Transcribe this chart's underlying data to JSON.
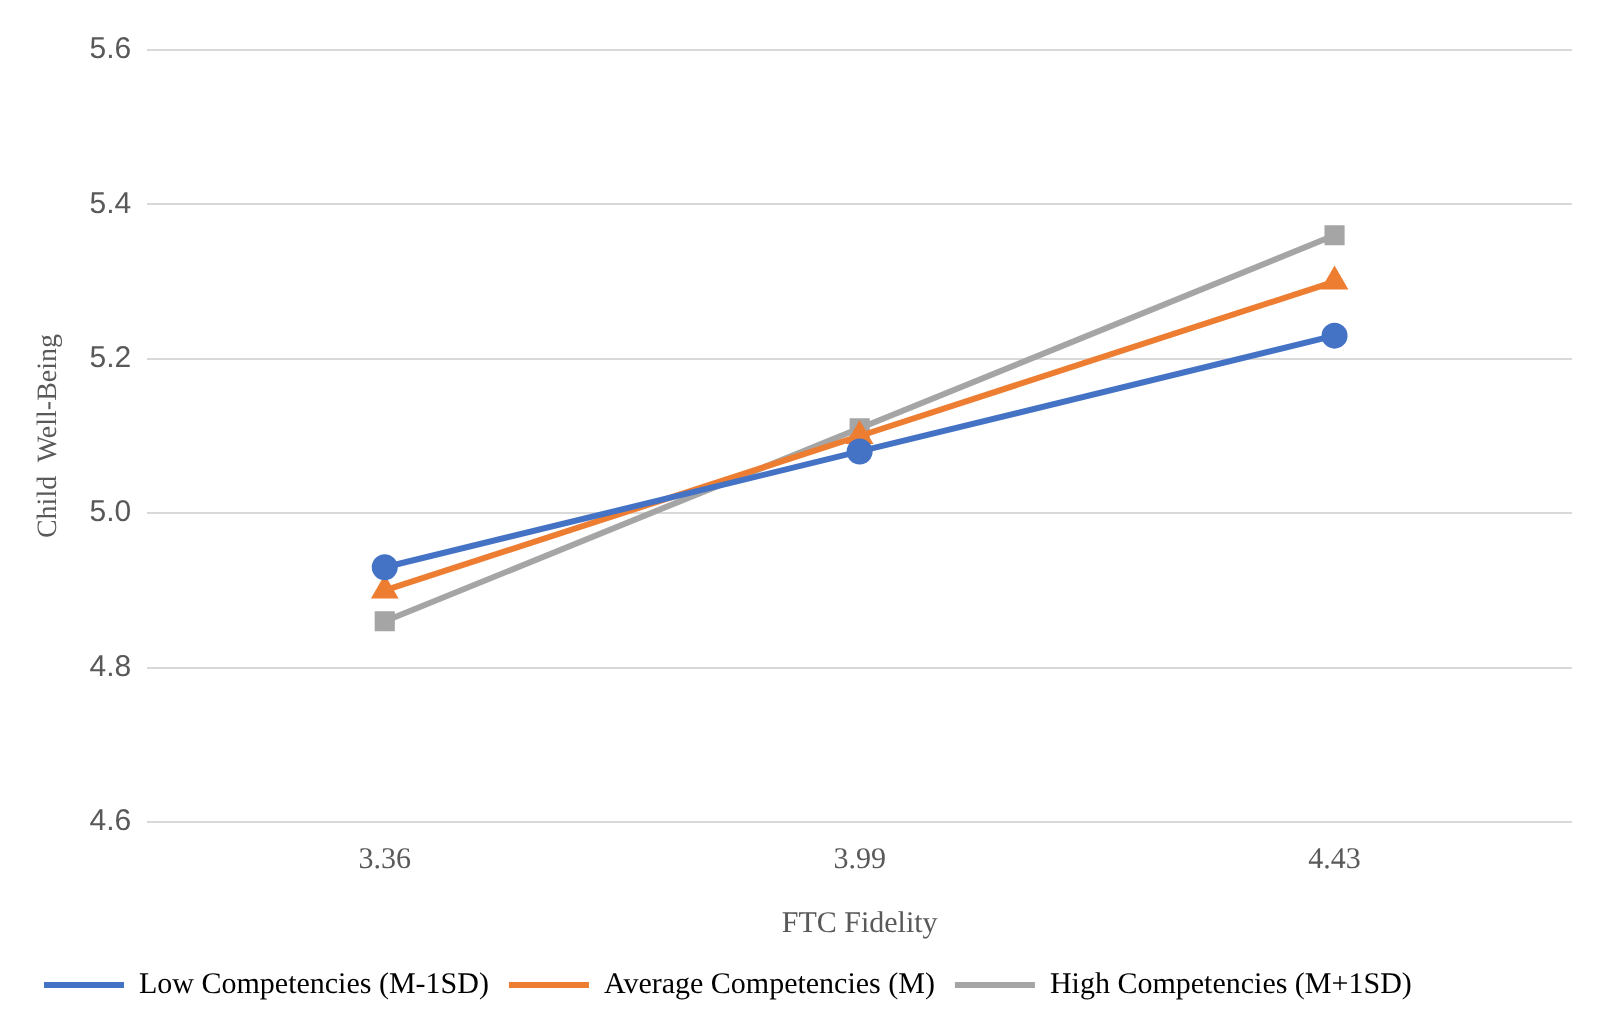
{
  "chart_data": {
    "type": "line",
    "xlabel": "FTC Fidelity",
    "ylabel": "Child  Well-Being",
    "categories": [
      "3.36",
      "3.99",
      "4.43"
    ],
    "series": [
      {
        "name": "Low Competencies (M-1SD)",
        "color": "#4472c4",
        "marker": "circle",
        "values": [
          4.93,
          5.08,
          5.23
        ]
      },
      {
        "name": "Average Competencies (M)",
        "color": "#ed7d31",
        "marker": "triangle",
        "values": [
          4.9,
          5.1,
          5.3
        ]
      },
      {
        "name": "High Competencies (M+1SD)",
        "color": "#a5a5a5",
        "marker": "square",
        "values": [
          4.86,
          5.11,
          5.36
        ]
      }
    ],
    "ylim": [
      4.6,
      5.6
    ],
    "yticks": [
      4.6,
      4.8,
      {
        "value": 5,
        "label": "5.0"
      },
      5.2,
      5.4,
      5.6
    ],
    "grid": "y",
    "legend": "bottom"
  }
}
